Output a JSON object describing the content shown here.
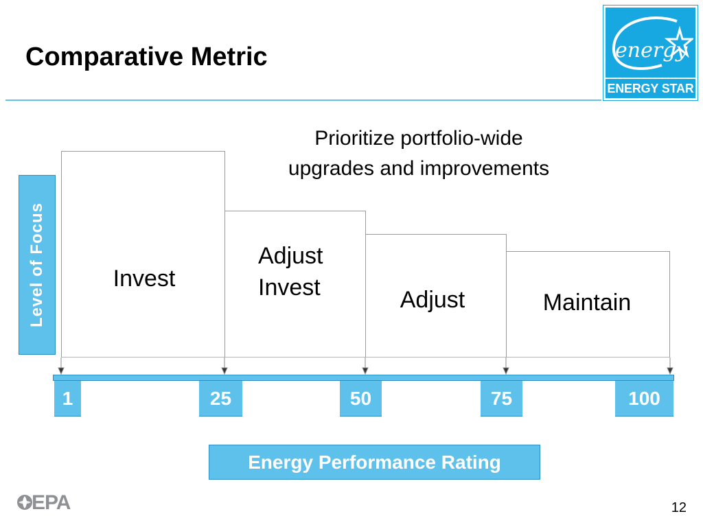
{
  "slide": {
    "title": "Comparative Metric",
    "page_number": "12"
  },
  "logo": {
    "script_text": "energy",
    "strip_text": "ENERGY STAR",
    "icon": "energy-star-icon"
  },
  "footer_logo": {
    "text": "EPA",
    "icon": "epa-flower-icon"
  },
  "diagram": {
    "priority_note": "Prioritize portfolio-wide\nupgrades and improvements",
    "y_axis_label": "Level of Focus",
    "x_axis_label": "Energy Performance Rating",
    "steps": [
      {
        "label": "Invest"
      },
      {
        "label": "Adjust\nInvest"
      },
      {
        "label": "Adjust"
      },
      {
        "label": "Maintain"
      }
    ],
    "ticks": [
      "1",
      "25",
      "50",
      "75",
      "100"
    ]
  },
  "colors": {
    "accent": "#5ec1ec",
    "accent_border": "#2a8fc4",
    "logo_blue": "#17a8e2",
    "rule": "#5fc3e8"
  }
}
